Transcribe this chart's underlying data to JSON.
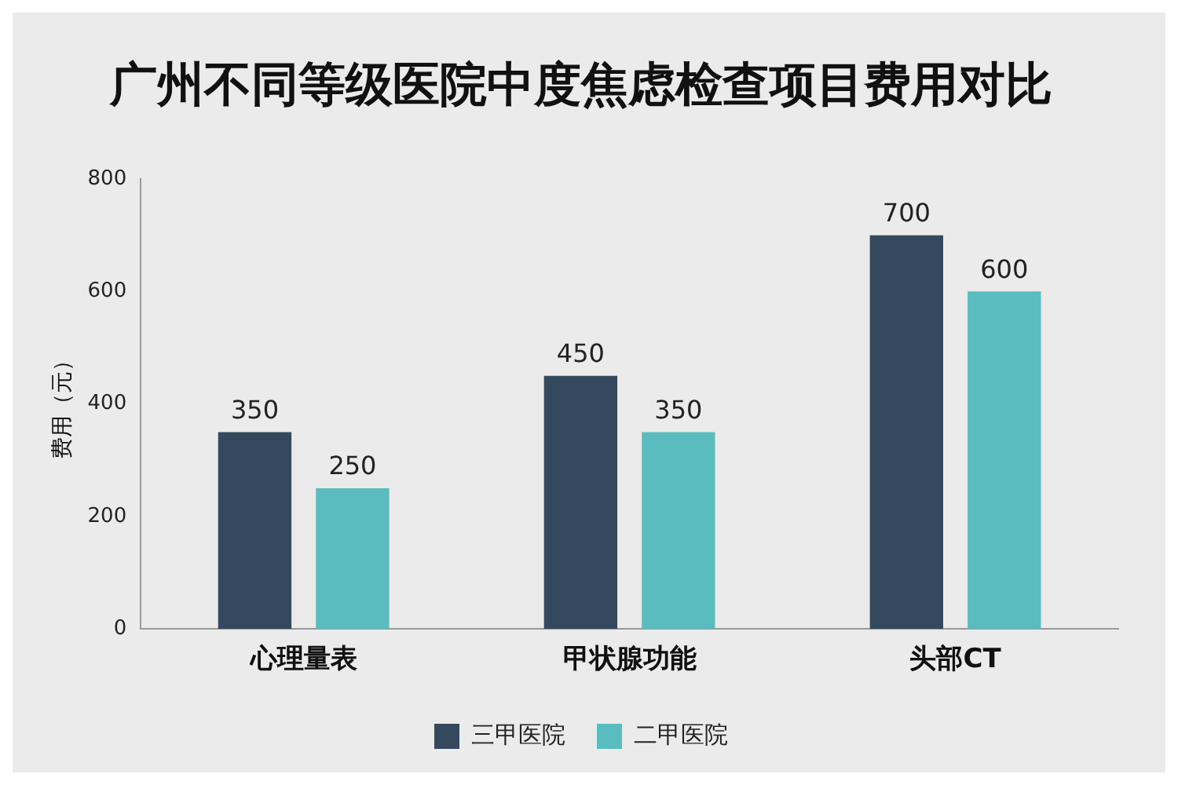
{
  "chart_data": {
    "type": "bar",
    "title": "广州不同等级医院中度焦虑检查项目费用对比",
    "ylabel": "费用（元）",
    "categories": [
      "心理量表",
      "甲状腺功能",
      "头部CT"
    ],
    "series": [
      {
        "name": "三甲医院",
        "color": "#34495e",
        "values": [
          350,
          450,
          700
        ]
      },
      {
        "name": "二甲医院",
        "color": "#5bbcbf",
        "values": [
          250,
          350,
          600
        ]
      }
    ],
    "ylim": [
      0,
      800
    ],
    "yticks": [
      0,
      200,
      400,
      600,
      800
    ],
    "grid": false,
    "legend": "bottom",
    "data_labels": true
  }
}
